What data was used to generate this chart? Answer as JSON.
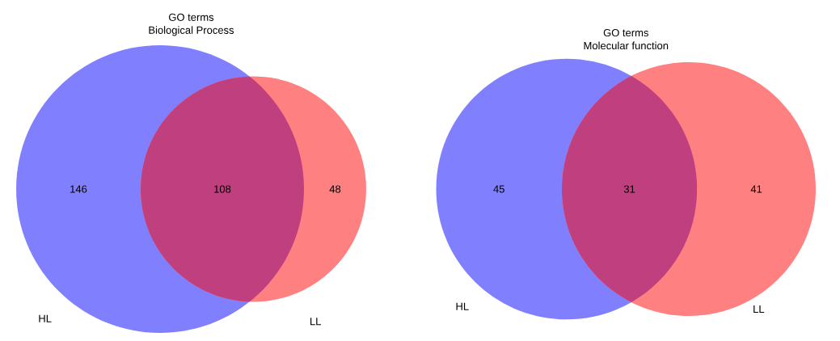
{
  "chart_data": [
    {
      "type": "other",
      "title": "GO terms",
      "subtitle": "Biological Process",
      "categories": [
        "HL",
        null,
        "LL"
      ],
      "values": [
        146,
        108,
        48
      ],
      "data_labels": true,
      "colors": [
        "#8080ff",
        "#bf3f7f",
        "#ff8080"
      ]
    },
    {
      "type": "other",
      "title": "GO terms",
      "subtitle": "Molecular function",
      "categories": [
        "HL",
        null,
        "LL"
      ],
      "values": [
        45,
        31,
        41
      ],
      "data_labels": true,
      "colors": [
        "#8080ff",
        "#bf3f7f",
        "#ff8080"
      ]
    }
  ]
}
